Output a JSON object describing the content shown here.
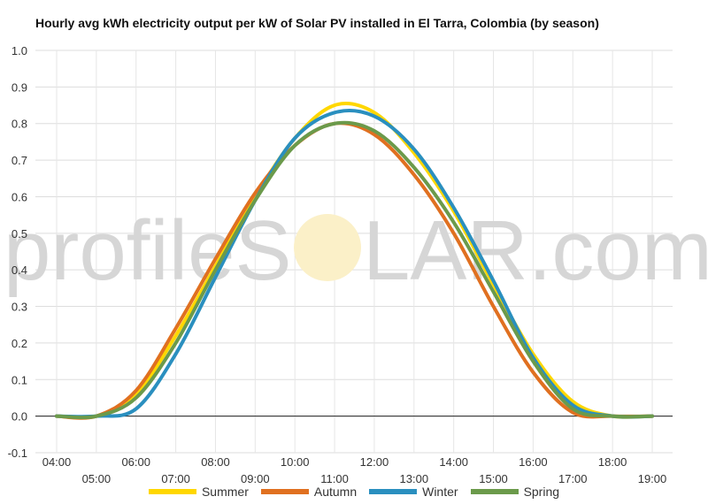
{
  "title": "Hourly avg kWh electricity output per kW of Solar PV installed in El Tarra, Colombia (by season)",
  "watermark": {
    "left": "profileS",
    "right": "LAR.com"
  },
  "chart_data": {
    "type": "line",
    "title": "Hourly avg kWh electricity output per kW of Solar PV installed in El Tarra, Colombia (by season)",
    "xlabel": "",
    "ylabel": "",
    "ylim": [
      -0.1,
      1.0
    ],
    "yticks": [
      "-0.1",
      "0.0",
      "0.1",
      "0.2",
      "0.3",
      "0.4",
      "0.5",
      "0.6",
      "0.7",
      "0.8",
      "0.9",
      "1.0"
    ],
    "categories": [
      "04:00",
      "05:00",
      "06:00",
      "07:00",
      "08:00",
      "09:00",
      "10:00",
      "11:00",
      "12:00",
      "13:00",
      "14:00",
      "15:00",
      "16:00",
      "17:00",
      "18:00",
      "19:00"
    ],
    "grid": true,
    "legend": "bottom",
    "series": [
      {
        "name": "Summer",
        "color": "#FFD700",
        "values": [
          0.0,
          0.0,
          0.06,
          0.22,
          0.41,
          0.6,
          0.76,
          0.85,
          0.83,
          0.72,
          0.56,
          0.36,
          0.17,
          0.04,
          0.0,
          0.0
        ]
      },
      {
        "name": "Autumn",
        "color": "#E07020",
        "values": [
          0.0,
          0.0,
          0.07,
          0.24,
          0.43,
          0.61,
          0.74,
          0.8,
          0.77,
          0.66,
          0.5,
          0.3,
          0.12,
          0.01,
          0.0,
          0.0
        ]
      },
      {
        "name": "Winter",
        "color": "#2A8FBF",
        "values": [
          0.0,
          0.0,
          0.02,
          0.17,
          0.38,
          0.59,
          0.76,
          0.83,
          0.82,
          0.73,
          0.57,
          0.37,
          0.16,
          0.03,
          0.0,
          0.0
        ]
      },
      {
        "name": "Spring",
        "color": "#6B9A4B",
        "values": [
          0.0,
          0.0,
          0.05,
          0.2,
          0.4,
          0.59,
          0.74,
          0.8,
          0.78,
          0.68,
          0.53,
          0.34,
          0.15,
          0.02,
          0.0,
          0.0
        ]
      }
    ]
  }
}
